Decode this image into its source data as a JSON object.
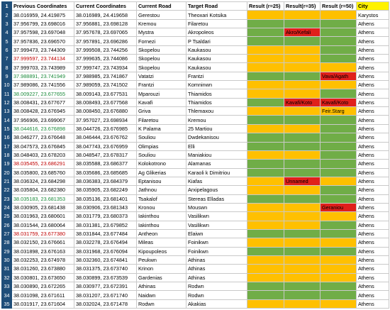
{
  "colors": {
    "green": "#70ad47",
    "yellow": "#ffc000",
    "red": "#e0201b",
    "header_yellow": "#fff200",
    "row_number_bg": "#1f4e79"
  },
  "headers": [
    "Previous Coordinates",
    "Current Coordinates",
    "Current Road",
    "Target Road",
    "Result (r=25)",
    "Result(r=35)",
    "Result (r=50)",
    "City"
  ],
  "rows": [
    {
      "n": "2",
      "prev": "38.016959, 24.419875",
      "cur": "38.016989, 24.419658",
      "road": "Gerestou",
      "target": "Theoxari Kotsika",
      "r25": "",
      "r35": "",
      "r50": "",
      "city": "Karystos",
      "c25": "y",
      "c35": "y",
      "c50": "y",
      "pc": ""
    },
    {
      "n": "3",
      "prev": "37.956799, 23.698016",
      "cur": "37.956881, 23.698128",
      "road": "Kremou",
      "target": "Filaretou",
      "r25": "",
      "r35": "",
      "r50": "",
      "city": "Athens",
      "c25": "g",
      "c35": "g",
      "c50": "g",
      "pc": ""
    },
    {
      "n": "4",
      "prev": "37.957598, 23.697048",
      "cur": "37.957678, 23.697065",
      "road": "Mystra",
      "target": "Akropoleos",
      "r25": "",
      "r35": "Akro/Kefali",
      "r50": "",
      "city": "Athens",
      "c25": "g",
      "c35": "r",
      "c50": "g",
      "pc": ""
    },
    {
      "n": "5",
      "prev": "37.957836, 23.696570",
      "cur": "37.957891, 23.696286",
      "road": "Fornezi",
      "target": "P Tsaldari",
      "r25": "",
      "r35": "",
      "r50": "",
      "city": "Athens",
      "c25": "g",
      "c35": "g",
      "c50": "g",
      "pc": ""
    },
    {
      "n": "6",
      "prev": "37.999473, 23.744309",
      "cur": "37.999508, 23.744256",
      "road": "Skopelou",
      "target": "Kaukasou",
      "r25": "",
      "r35": "",
      "r50": "",
      "city": "Athens",
      "c25": "y",
      "c35": "y",
      "c50": "g",
      "pc": ""
    },
    {
      "n": "7",
      "prev": "37.999597, 23.744134",
      "cur": "37.999635, 23.744086",
      "road": "Skopelou",
      "target": "Kaukasou",
      "r25": "",
      "r35": "",
      "r50": "",
      "city": "Athens",
      "c25": "y",
      "c35": "y",
      "c50": "g",
      "pc": "hl-red"
    },
    {
      "n": "8",
      "prev": "37.999703, 23.743989",
      "cur": "37.999747, 23.743934",
      "road": "Skopelou",
      "target": "Kaukasou",
      "r25": "",
      "r35": "",
      "r50": "",
      "city": "Athens",
      "c25": "y",
      "c35": "y",
      "c50": "y",
      "pc": ""
    },
    {
      "n": "9",
      "prev": "37.988891, 23.741949",
      "cur": "37.988985, 23.741867",
      "road": "Vatatzi",
      "target": "Frantzi",
      "r25": "",
      "r35": "",
      "r50": "Vava/Agath",
      "city": "Athens",
      "c25": "g",
      "c35": "g",
      "c50": "r",
      "pc": "hl-green"
    },
    {
      "n": "10",
      "prev": "37.989086, 23.741556",
      "cur": "37.989059, 23.741502",
      "road": "Frantzi",
      "target": "Komninwn",
      "r25": "",
      "r35": "",
      "r50": "",
      "city": "Athens",
      "c25": "y",
      "c35": "y",
      "c50": "y",
      "pc": ""
    },
    {
      "n": "11",
      "prev": "38.009227, 23.677655",
      "cur": "38.009143, 23.677531",
      "road": "Mparouzi",
      "target": "Thiamidos",
      "r25": "",
      "r35": "",
      "r50": "",
      "city": "Athens",
      "c25": "y",
      "c35": "y",
      "c50": "g",
      "pc": "hl-green"
    },
    {
      "n": "12",
      "prev": "38.008431, 23.677677",
      "cur": "38.008493, 23.677568",
      "road": "Kavafi",
      "target": "Thiamidos",
      "r25": "",
      "r35": "Kavafi/Koto",
      "r50": "Kavafi/Koto",
      "city": "Athens",
      "c25": "g",
      "c35": "r",
      "c50": "r",
      "pc": ""
    },
    {
      "n": "13",
      "prev": "38.008428, 23.676945",
      "cur": "38.008450, 23.676880",
      "road": "Griva",
      "target": "Thlemaxou",
      "r25": "",
      "r35": "",
      "r50": "Feir.Starg",
      "city": "Athens",
      "c25": "y",
      "c35": "y",
      "c50": "y",
      "pc": ""
    },
    {
      "n": "14",
      "prev": "37.956906, 23.699067",
      "cur": "37.957027, 23.698934",
      "road": "Filaretou",
      "target": "Kremou",
      "r25": "",
      "r35": "",
      "r50": "",
      "city": "Athens",
      "c25": "g",
      "c35": "g",
      "c50": "g",
      "pc": ""
    },
    {
      "n": "15",
      "prev": "38.044616, 23.676898",
      "cur": "38.044726, 23.676985",
      "road": "K Palama",
      "target": "25 Martiou",
      "r25": "",
      "r35": "",
      "r50": "",
      "city": "Athens",
      "c25": "y",
      "c35": "y",
      "c50": "g",
      "pc": "hl-green"
    },
    {
      "n": "16",
      "prev": "38.046277, 23.676648",
      "cur": "38.046444, 23.676762",
      "road": "Souliou",
      "target": "Dwdekanisou",
      "r25": "",
      "r35": "",
      "r50": "",
      "city": "Athens",
      "c25": "g",
      "c35": "g",
      "c50": "g",
      "pc": ""
    },
    {
      "n": "17",
      "prev": "38.047573, 23.676845",
      "cur": "38.047743, 23.676959",
      "road": "Olimpias",
      "target": "Elli",
      "r25": "",
      "r35": "",
      "r50": "",
      "city": "Athens",
      "c25": "g",
      "c35": "g",
      "c50": "g",
      "pc": ""
    },
    {
      "n": "18",
      "prev": "38.048403, 23.678203",
      "cur": "38.048547, 23.678317",
      "road": "Souliou",
      "target": "Maniakiou",
      "r25": "",
      "r35": "",
      "r50": "",
      "city": "Athens",
      "c25": "y",
      "c35": "y",
      "c50": "g",
      "pc": ""
    },
    {
      "n": "19",
      "prev": "38.035455, 23.686291",
      "cur": "38.035588, 23.686377",
      "road": "Kolokotrono",
      "target": "Alamanas",
      "r25": "",
      "r35": "",
      "r50": "",
      "city": "Athens",
      "c25": "g",
      "c35": "g",
      "c50": "g",
      "pc": "hl-red"
    },
    {
      "n": "20",
      "prev": "38.035800, 23.685760",
      "cur": "38.035686, 23.685685",
      "road": "Ag Glikerias",
      "target": "Karaoli k Dimitriou",
      "r25": "",
      "r35": "",
      "r50": "",
      "city": "Athens",
      "c25": "g",
      "c35": "g",
      "c50": "g",
      "pc": ""
    },
    {
      "n": "21",
      "prev": "38.036324, 23.684298",
      "cur": "38.036383, 23.684379",
      "road": "Eptanisou",
      "target": "Kiafas",
      "r25": "",
      "r35": "Unnamed",
      "r50": "",
      "city": "Athens",
      "c25": "y",
      "c35": "r",
      "c50": "y",
      "pc": ""
    },
    {
      "n": "22",
      "prev": "38.035804, 23.682380",
      "cur": "38.035905, 23.682249",
      "road": "Jathnou",
      "target": "Arxipelagous",
      "r25": "",
      "r35": "",
      "r50": "",
      "city": "Athens",
      "c25": "y",
      "c35": "y",
      "c50": "g",
      "pc": ""
    },
    {
      "n": "23",
      "prev": "38.035183, 23.681353",
      "cur": "38.035136, 23.681401",
      "road": "Tsakalof",
      "target": "Sterеas Elladas",
      "r25": "",
      "r35": "",
      "r50": "",
      "city": "Athens",
      "c25": "g",
      "c35": "g",
      "c50": "g",
      "pc": "hl-green"
    },
    {
      "n": "24",
      "prev": "38.030905, 23.681438",
      "cur": "38.030906, 23.681343",
      "road": "Kronou",
      "target": "Mouswn",
      "r25": "",
      "r35": "",
      "r50": "Geraniou",
      "city": "Athens",
      "c25": "y",
      "c35": "y",
      "c50": "r",
      "pc": ""
    },
    {
      "n": "25",
      "prev": "38.031963, 23.680601",
      "cur": "38.031779, 23.680373",
      "road": "Iakinthou",
      "target": "Vasilikwn",
      "r25": "",
      "r35": "",
      "r50": "",
      "city": "Athens",
      "c25": "y",
      "c35": "y",
      "c50": "y",
      "pc": ""
    },
    {
      "n": "26",
      "prev": "38.031544, 23.680064",
      "cur": "38.031381, 23.679852",
      "road": "Iakinthou",
      "target": "Vasilikwn",
      "r25": "",
      "r35": "",
      "r50": "",
      "city": "Athens",
      "c25": "y",
      "c35": "y",
      "c50": "g",
      "pc": ""
    },
    {
      "n": "27",
      "prev": "38.031759, 23.677380",
      "cur": "38.031844, 23.677484",
      "road": "Antheon",
      "target": "Elaiwn",
      "r25": "",
      "r35": "",
      "r50": "",
      "city": "Athens",
      "c25": "g",
      "c35": "g",
      "c50": "g",
      "pc": "hl-red"
    },
    {
      "n": "28",
      "prev": "38.032150, 23.676661",
      "cur": "38.032278, 23.676494",
      "road": "Mileas",
      "target": "Foinikwn",
      "r25": "",
      "r35": "",
      "r50": "",
      "city": "Athens",
      "c25": "y",
      "c35": "y",
      "c50": "y",
      "pc": ""
    },
    {
      "n": "29",
      "prev": "38.031898, 23.676163",
      "cur": "38.031968, 23.676094",
      "road": "Kipoupoleos",
      "target": "Foinikwn",
      "r25": "",
      "r35": "",
      "r50": "",
      "city": "Athens",
      "c25": "g",
      "c35": "g",
      "c50": "g",
      "pc": ""
    },
    {
      "n": "30",
      "prev": "38.032253, 23.674978",
      "cur": "38.032360, 23.674841",
      "road": "Peukwn",
      "target": "Athinas",
      "r25": "",
      "r35": "",
      "r50": "",
      "city": "Athens",
      "c25": "y",
      "c35": "y",
      "c50": "y",
      "pc": ""
    },
    {
      "n": "31",
      "prev": "38.031260, 23.673880",
      "cur": "38.031375, 23.673740",
      "road": "Krinon",
      "target": "Athinas",
      "r25": "",
      "r35": "",
      "r50": "",
      "city": "Athens",
      "c25": "y",
      "c35": "y",
      "c50": "y",
      "pc": ""
    },
    {
      "n": "32",
      "prev": "38.030801, 23.673650",
      "cur": "38.030899, 23.673539",
      "road": "Gardenias",
      "target": "Athinas",
      "r25": "",
      "r35": "",
      "r50": "",
      "city": "Athens",
      "c25": "y",
      "c35": "y",
      "c50": "y",
      "pc": ""
    },
    {
      "n": "33",
      "prev": "38.030890, 23.672265",
      "cur": "38.030977, 23.672391",
      "road": "Athinas",
      "target": "Rodwn",
      "r25": "",
      "r35": "",
      "r50": "",
      "city": "Athens",
      "c25": "g",
      "c35": "g",
      "c50": "g",
      "pc": ""
    },
    {
      "n": "34",
      "prev": "38.031098, 23.671611",
      "cur": "38.031207, 23.671740",
      "road": "Naidwn",
      "target": "Rodwn",
      "r25": "",
      "r35": "",
      "r50": "",
      "city": "Athens",
      "c25": "g",
      "c35": "g",
      "c50": "g",
      "pc": ""
    },
    {
      "n": "35",
      "prev": "38.031917, 23.671604",
      "cur": "38.032024, 23.671478",
      "road": "Rodwn",
      "target": "Akakias",
      "r25": "",
      "r35": "",
      "r50": "",
      "city": "Athens",
      "c25": "y",
      "c35": "y",
      "c50": "y",
      "pc": ""
    }
  ]
}
